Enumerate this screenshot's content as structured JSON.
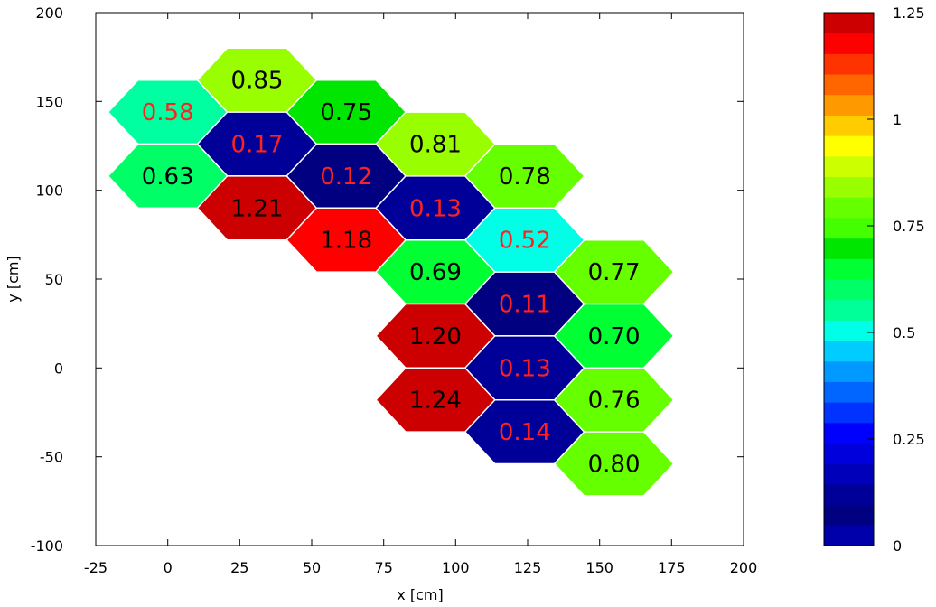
{
  "chart_data": {
    "type": "heatmap",
    "title": "",
    "xlabel": "x [cm]",
    "ylabel": "y [cm]",
    "xlim": [
      -25,
      200
    ],
    "ylim": [
      -100,
      200
    ],
    "x_ticks": [
      -25,
      0,
      25,
      50,
      75,
      100,
      125,
      150,
      175,
      200
    ],
    "y_ticks": [
      -100,
      -50,
      0,
      50,
      100,
      150,
      200
    ],
    "grid": false,
    "colorbar": {
      "range": [
        0,
        1.25
      ],
      "ticks": [
        {
          "value": 0,
          "label": "0"
        },
        {
          "value": 0.25,
          "label": "0.25"
        },
        {
          "value": 0.5,
          "label": "0.5"
        },
        {
          "value": 0.75,
          "label": "0.75"
        },
        {
          "value": 1,
          "label": "1"
        },
        {
          "value": 1.25,
          "label": "1.25"
        }
      ],
      "colors": [
        "#0000aa",
        "#000080",
        "#000099",
        "#0000bb",
        "#0000dd",
        "#0000ff",
        "#0033ff",
        "#0066ff",
        "#0099ff",
        "#00ccff",
        "#00ffe6",
        "#00ff99",
        "#00ff66",
        "#00ff33",
        "#00e600",
        "#44ff00",
        "#66ff00",
        "#99ff00",
        "#ccff00",
        "#ffff00",
        "#ffcc00",
        "#ff9900",
        "#ff6600",
        "#ff3300",
        "#ff0000",
        "#cc0000"
      ]
    },
    "cells": [
      {
        "x": 0,
        "y": 144,
        "label": "0.58",
        "color": "#00ffa0",
        "text_color": "#ff2020"
      },
      {
        "x": 31,
        "y": 162,
        "label": "0.85",
        "color": "#99ff00",
        "text_color": "#000000"
      },
      {
        "x": 31,
        "y": 126,
        "label": "0.17",
        "color": "#000099",
        "text_color": "#ff2020"
      },
      {
        "x": 0,
        "y": 108,
        "label": "0.63",
        "color": "#00ff66",
        "text_color": "#000000"
      },
      {
        "x": 31,
        "y": 90,
        "label": "1.21",
        "color": "#cc0000",
        "text_color": "#000000"
      },
      {
        "x": 62,
        "y": 144,
        "label": "0.75",
        "color": "#00e600",
        "text_color": "#000000"
      },
      {
        "x": 62,
        "y": 108,
        "label": "0.12",
        "color": "#000080",
        "text_color": "#ff2020"
      },
      {
        "x": 62,
        "y": 72,
        "label": "1.18",
        "color": "#ff0000",
        "text_color": "#000000"
      },
      {
        "x": 93,
        "y": 126,
        "label": "0.81",
        "color": "#99ff00",
        "text_color": "#000000"
      },
      {
        "x": 93,
        "y": 90,
        "label": "0.13",
        "color": "#000099",
        "text_color": "#ff2020"
      },
      {
        "x": 93,
        "y": 54,
        "label": "0.69",
        "color": "#00ff33",
        "text_color": "#000000"
      },
      {
        "x": 93,
        "y": 18,
        "label": "1.20",
        "color": "#cc0000",
        "text_color": "#000000"
      },
      {
        "x": 93,
        "y": -18,
        "label": "1.24",
        "color": "#cc0000",
        "text_color": "#000000"
      },
      {
        "x": 124,
        "y": 108,
        "label": "0.78",
        "color": "#66ff00",
        "text_color": "#000000"
      },
      {
        "x": 124,
        "y": 72,
        "label": "0.52",
        "color": "#00ffe6",
        "text_color": "#ff2020"
      },
      {
        "x": 124,
        "y": 36,
        "label": "0.11",
        "color": "#000080",
        "text_color": "#ff2020"
      },
      {
        "x": 124,
        "y": 0,
        "label": "0.13",
        "color": "#000099",
        "text_color": "#ff2020"
      },
      {
        "x": 124,
        "y": -36,
        "label": "0.14",
        "color": "#000099",
        "text_color": "#ff2020"
      },
      {
        "x": 155,
        "y": 54,
        "label": "0.77",
        "color": "#66ff00",
        "text_color": "#000000"
      },
      {
        "x": 155,
        "y": 18,
        "label": "0.70",
        "color": "#00ff33",
        "text_color": "#000000"
      },
      {
        "x": 155,
        "y": -18,
        "label": "0.76",
        "color": "#66ff00",
        "text_color": "#000000"
      },
      {
        "x": 155,
        "y": -54,
        "label": "0.80",
        "color": "#66ff00",
        "text_color": "#000000"
      }
    ]
  }
}
